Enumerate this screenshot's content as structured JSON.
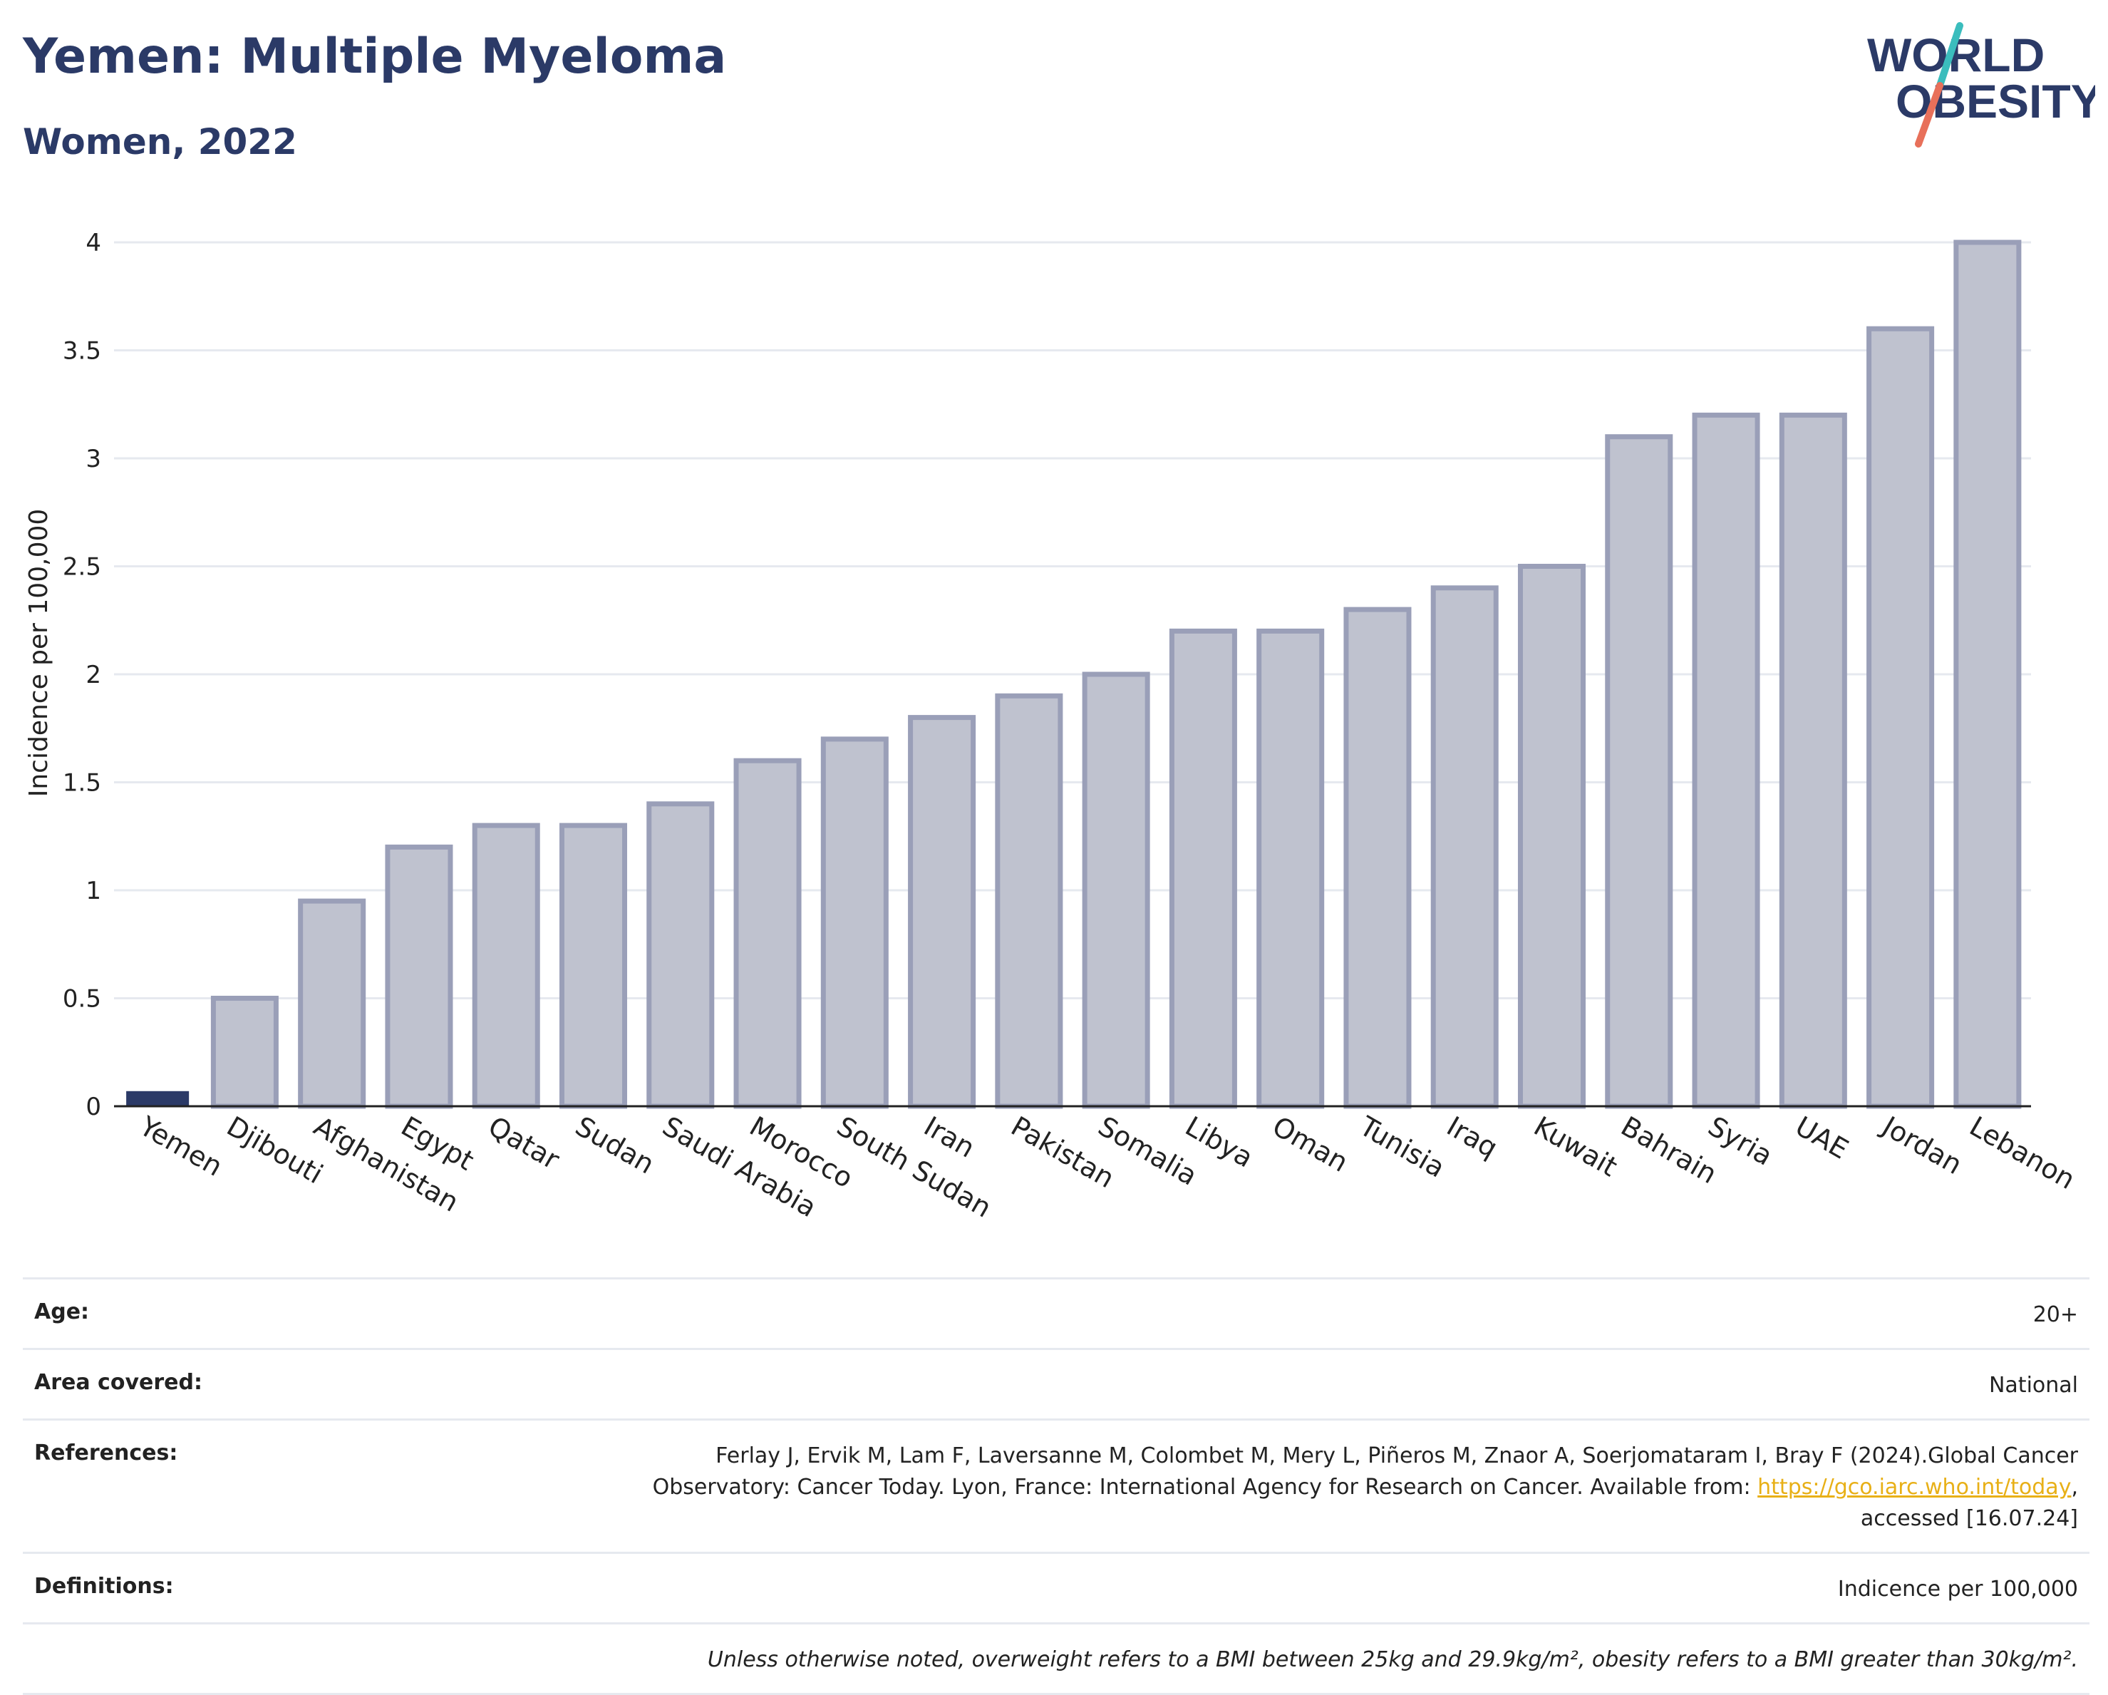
{
  "title": "Yemen: Multiple Myeloma",
  "subtitle": "Women, 2022",
  "logo": {
    "line1": "WORLD",
    "line2": "OBESITY",
    "colors": {
      "text": "#2b3a67",
      "slash_top": "#3bbdbd",
      "slash_bottom": "#e8705a"
    }
  },
  "colors": {
    "highlight": "#2b3a67",
    "bar_fill": "#bfc2cf",
    "bar_stroke": "#9a9fb8",
    "grid": "#e6e9ef",
    "axis": "#222222"
  },
  "chart_data": {
    "type": "bar",
    "ylabel": "Incidence per 100,000",
    "xlabel": "",
    "ylim": [
      0,
      4
    ],
    "yticks": [
      0,
      0.5,
      1,
      1.5,
      2,
      2.5,
      3,
      3.5,
      4
    ],
    "ytick_labels": [
      "0",
      "0.5",
      "1",
      "1.5",
      "2",
      "2.5",
      "3",
      "3.5",
      "4"
    ],
    "grid": true,
    "highlight": "Yemen",
    "categories": [
      "Yemen",
      "Djibouti",
      "Afghanistan",
      "Egypt",
      "Qatar",
      "Sudan",
      "Saudi Arabia",
      "Morocco",
      "South Sudan",
      "Iran",
      "Pakistan",
      "Somalia",
      "Libya",
      "Oman",
      "Tunisia",
      "Iraq",
      "Kuwait",
      "Bahrain",
      "Syria",
      "UAE",
      "Jordan",
      "Lebanon"
    ],
    "values": [
      0.07,
      0.5,
      0.95,
      1.2,
      1.3,
      1.3,
      1.4,
      1.6,
      1.7,
      1.8,
      1.9,
      2.0,
      2.2,
      2.2,
      2.3,
      2.4,
      2.5,
      3.1,
      3.2,
      3.2,
      3.6,
      4.0
    ]
  },
  "info": {
    "age_label": "Age:",
    "age_value": "20+",
    "area_label": "Area covered:",
    "area_value": "National",
    "references_label": "References:",
    "references_line1": "Ferlay J, Ervik M, Lam F, Laversanne M, Colombet M, Mery L, Piñeros M, Znaor A, Soerjomataram I, Bray F (2024).Global Cancer",
    "references_line2_pre": "Observatory: Cancer Today. Lyon, France: International Agency for Research on Cancer. Available from: ",
    "references_link": "https://gco.iarc.who.int/today",
    "references_line2_post": ",",
    "references_line3": "accessed [16.07.24]",
    "definitions_label": "Definitions:",
    "definitions_value": "Indicence per 100,000",
    "note": "Unless otherwise noted, overweight refers to a BMI between 25kg and 29.9kg/m², obesity refers to a BMI greater than 30kg/m²."
  }
}
